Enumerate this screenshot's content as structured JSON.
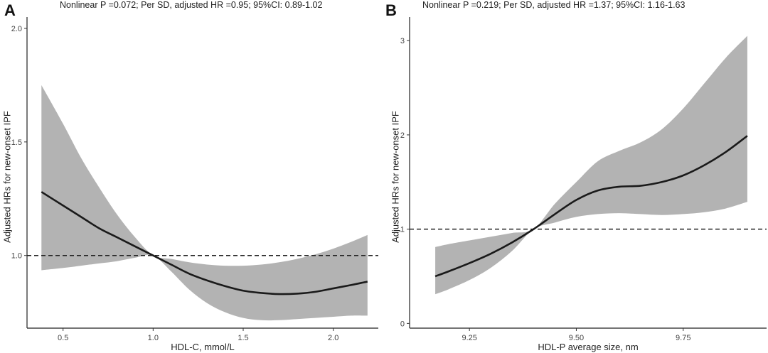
{
  "chart_data": [
    {
      "panel": "A",
      "type": "line",
      "subtitle": "Nonlinear P =0.072; Per SD, adjusted HR =0.95; 95%CI: 0.89-1.02",
      "xlabel": "HDL-C, mmol/L",
      "ylabel": "Adjusted HRs for new-onset IPF",
      "xlim": [
        0.3,
        2.25
      ],
      "ylim": [
        0.68,
        2.05
      ],
      "xticks": [
        0.5,
        1.0,
        1.5,
        2.0
      ],
      "xtick_labels": [
        "0.5",
        "1.0",
        "1.5",
        "2.0"
      ],
      "yticks": [
        1.0,
        1.5,
        2.0
      ],
      "ytick_labels": [
        "1.0",
        "1.5",
        "2.0"
      ],
      "reference_hr": 1.0,
      "grid": false,
      "line_color": "#1a1a1a",
      "band_color": "#b3b3b3",
      "x": [
        0.38,
        0.5,
        0.6,
        0.7,
        0.8,
        0.9,
        1.0,
        1.1,
        1.2,
        1.3,
        1.4,
        1.5,
        1.6,
        1.7,
        1.8,
        1.9,
        2.0,
        2.1,
        2.19
      ],
      "hr": [
        1.28,
        1.22,
        1.17,
        1.12,
        1.08,
        1.04,
        1.0,
        0.96,
        0.92,
        0.89,
        0.865,
        0.845,
        0.835,
        0.83,
        0.832,
        0.84,
        0.855,
        0.87,
        0.885
      ],
      "lower": [
        0.935,
        0.945,
        0.955,
        0.965,
        0.975,
        0.99,
        1.0,
        0.93,
        0.85,
        0.79,
        0.75,
        0.725,
        0.715,
        0.715,
        0.72,
        0.725,
        0.73,
        0.735,
        0.735
      ],
      "upper": [
        1.75,
        1.58,
        1.43,
        1.3,
        1.18,
        1.08,
        1.0,
        0.985,
        0.97,
        0.96,
        0.955,
        0.955,
        0.96,
        0.97,
        0.985,
        1.005,
        1.03,
        1.06,
        1.09
      ]
    },
    {
      "panel": "B",
      "type": "line",
      "subtitle": "Nonlinear P =0.219; Per SD, adjusted HR =1.37; 95%CI: 1.16-1.63",
      "xlabel": "HDL-P average size, nm",
      "ylabel": "Adjusted HRs for new-onset IPF",
      "xlim": [
        9.11,
        9.945
      ],
      "ylim": [
        -0.05,
        3.25
      ],
      "xticks": [
        9.25,
        9.5,
        9.75
      ],
      "xtick_labels": [
        "9.25",
        "9.50",
        "9.75"
      ],
      "yticks": [
        0,
        1,
        2,
        3
      ],
      "ytick_labels": [
        "0",
        "1",
        "2",
        "3"
      ],
      "reference_hr": 1.0,
      "grid": false,
      "line_color": "#1a1a1a",
      "band_color": "#b3b3b3",
      "x": [
        9.17,
        9.2,
        9.25,
        9.3,
        9.35,
        9.4,
        9.45,
        9.5,
        9.55,
        9.6,
        9.65,
        9.7,
        9.75,
        9.8,
        9.85,
        9.9
      ],
      "hr": [
        0.5,
        0.55,
        0.64,
        0.74,
        0.86,
        1.0,
        1.16,
        1.31,
        1.41,
        1.45,
        1.46,
        1.5,
        1.57,
        1.68,
        1.82,
        1.99
      ],
      "lower": [
        0.31,
        0.36,
        0.46,
        0.59,
        0.77,
        1.0,
        1.07,
        1.13,
        1.16,
        1.17,
        1.16,
        1.15,
        1.16,
        1.18,
        1.22,
        1.29
      ],
      "upper": [
        0.81,
        0.84,
        0.88,
        0.92,
        0.96,
        1.0,
        1.27,
        1.5,
        1.72,
        1.83,
        1.92,
        2.06,
        2.28,
        2.55,
        2.82,
        3.05
      ]
    }
  ]
}
